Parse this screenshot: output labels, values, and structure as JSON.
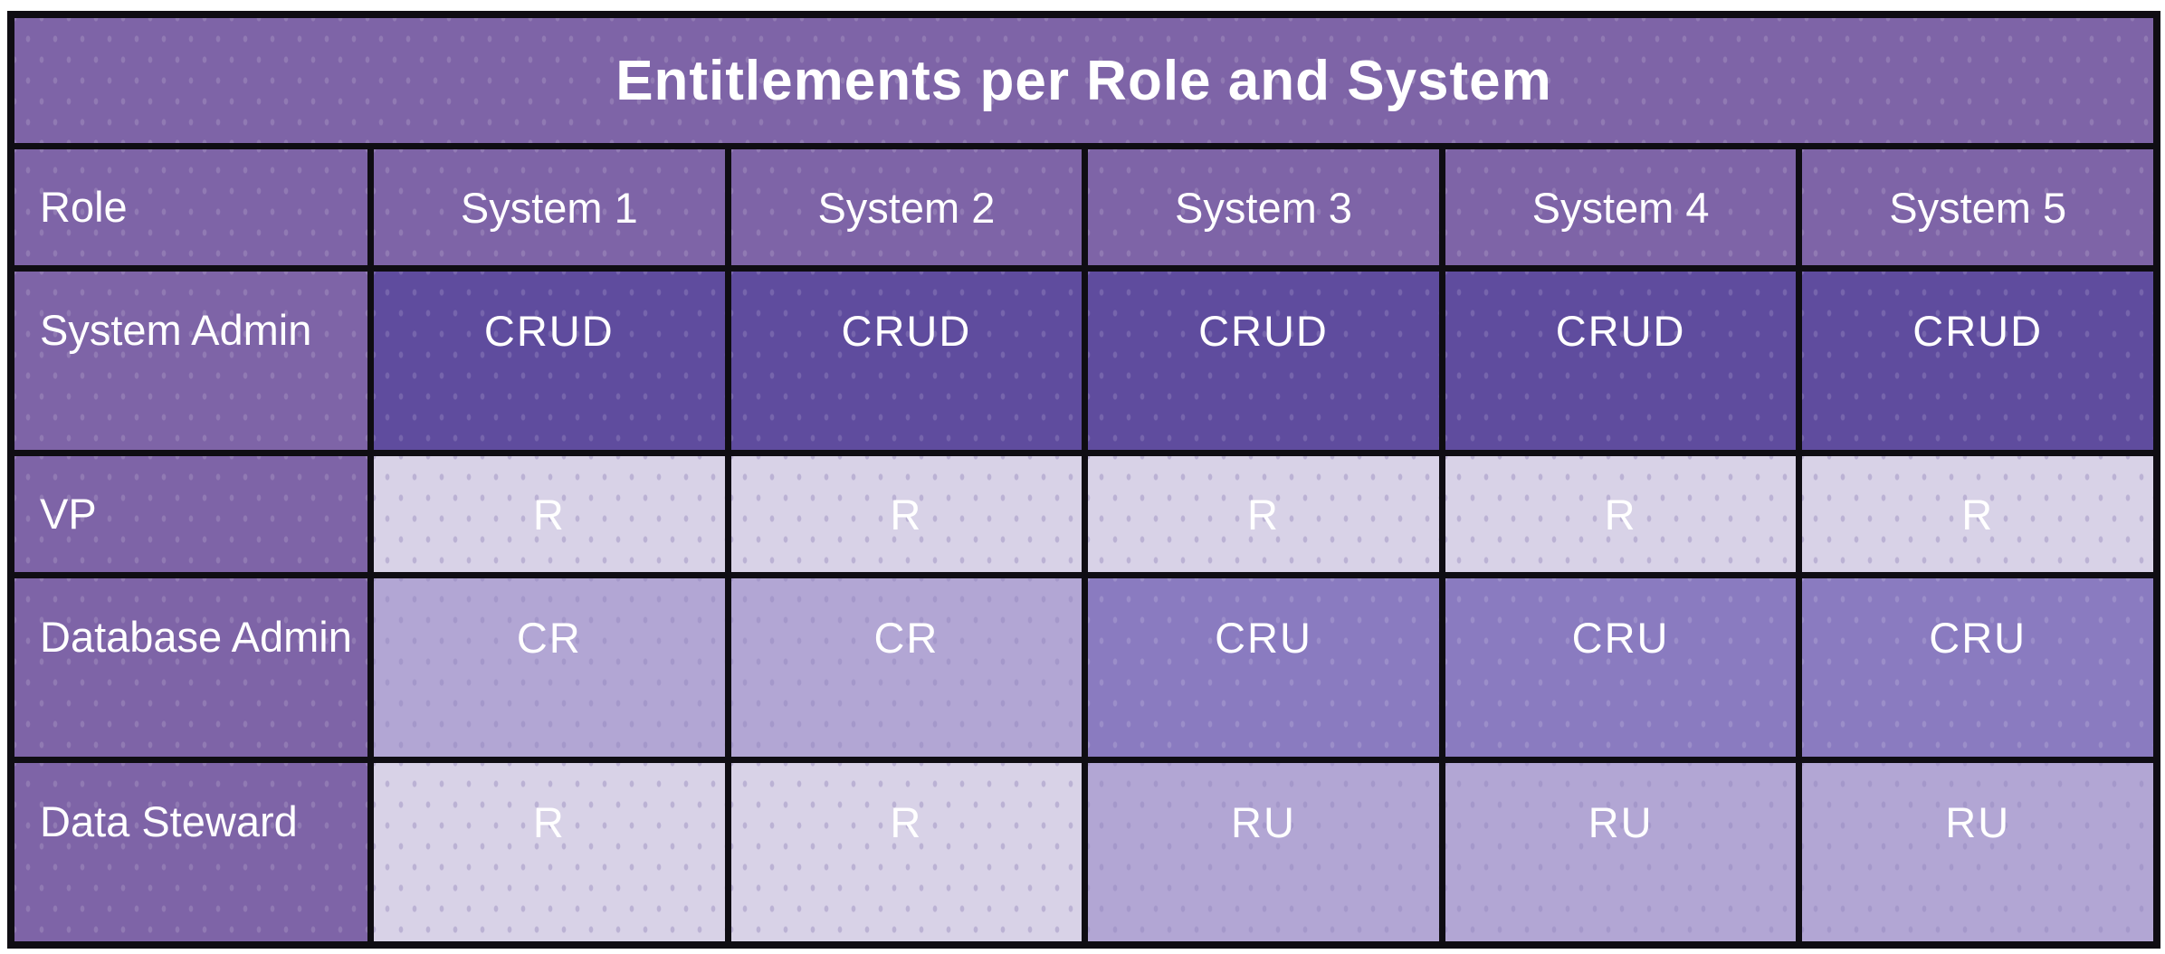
{
  "title": "Entitlements per Role and System",
  "chart_data": {
    "type": "table",
    "title": "Entitlements per Role and System",
    "columns": [
      "Role",
      "System 1",
      "System 2",
      "System 3",
      "System 4",
      "System 5"
    ],
    "rows": [
      {
        "role": "System Admin",
        "values": [
          "CRUD",
          "CRUD",
          "CRUD",
          "CRUD",
          "CRUD"
        ]
      },
      {
        "role": "VP",
        "values": [
          "R",
          "R",
          "R",
          "R",
          "R"
        ]
      },
      {
        "role": "Database Admin",
        "values": [
          "CR",
          "CR",
          "CRU",
          "CRU",
          "CRU"
        ]
      },
      {
        "role": "Data Steward",
        "values": [
          "R",
          "R",
          "RU",
          "RU",
          "RU"
        ]
      }
    ],
    "colors": {
      "grid_line": "#0f0d13",
      "header_and_label_background": "#7e64a7",
      "cell_crud": "#5f4c9e",
      "cell_cru": "#8a7bc0",
      "cell_cr_and_ru": "#b2a6d4",
      "cell_r": "#d8d2e7",
      "text": "#ffffff"
    }
  }
}
